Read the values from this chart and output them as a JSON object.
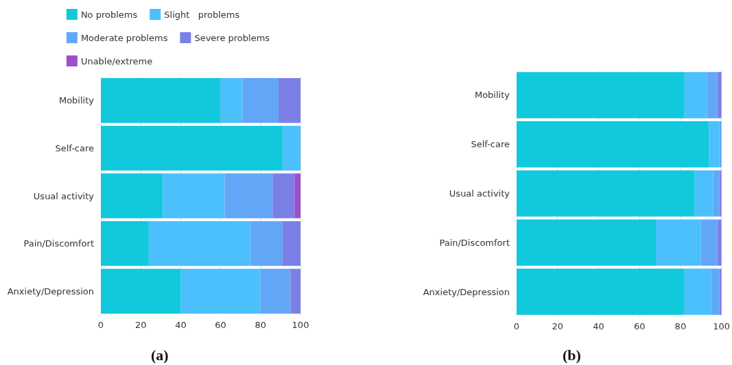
{
  "chart_data": [
    {
      "type": "bar",
      "orientation": "horizontal",
      "stacked": true,
      "categories": [
        "Mobility",
        "Self-care",
        "Usual activity",
        "Pain/Discomfort",
        "Anxiety/Depression"
      ],
      "xlim": [
        0,
        100
      ],
      "xticks": [
        0,
        20,
        40,
        60,
        80,
        100
      ],
      "grid": "x",
      "legend": "top",
      "annotations": [
        "(a)"
      ],
      "series": [
        {
          "name": "No problems",
          "color": "#12c8dc",
          "values": [
            60,
            91,
            31,
            24,
            40
          ]
        },
        {
          "name": "Slight   problems",
          "color": "#4bc0fd",
          "values": [
            11,
            9,
            31,
            51,
            40
          ]
        },
        {
          "name": "Moderate problems",
          "color": "#62a6f8",
          "values": [
            18,
            0,
            24,
            16,
            15
          ]
        },
        {
          "name": "Severe problems",
          "color": "#7b80e6",
          "values": [
            11,
            0,
            11,
            9,
            5
          ]
        },
        {
          "name": "Unable/extreme",
          "color": "#9b4fcf",
          "values": [
            0,
            0,
            3,
            0,
            0
          ]
        }
      ]
    },
    {
      "type": "bar",
      "orientation": "horizontal",
      "stacked": true,
      "categories": [
        "Mobility",
        "Self-care",
        "Usual activity",
        "Pain/Discomfort",
        "Anxiety/Depression"
      ],
      "xlim": [
        0,
        100
      ],
      "xticks": [
        0,
        20,
        40,
        60,
        80,
        100
      ],
      "grid": "x",
      "annotations": [
        "(b)"
      ],
      "series": [
        {
          "color": "#12c8dc",
          "values": [
            82,
            94,
            87,
            68,
            82
          ]
        },
        {
          "color": "#4bc0fd",
          "values": [
            11,
            5,
            9,
            22,
            13
          ]
        },
        {
          "color": "#62a6f8",
          "values": [
            5,
            1,
            3,
            8,
            4
          ]
        },
        {
          "color": "#7b80e6",
          "values": [
            2,
            0,
            1,
            2,
            1
          ]
        }
      ]
    }
  ]
}
